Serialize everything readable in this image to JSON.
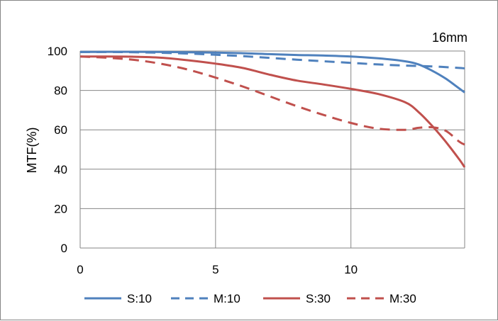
{
  "chart_data": {
    "type": "line",
    "title": "16mm",
    "xlabel": "",
    "ylabel": "MTF(%)",
    "xlim": [
      0,
      14.2
    ],
    "ylim": [
      0,
      100
    ],
    "x_ticks": [
      0,
      5,
      10
    ],
    "y_ticks": [
      0,
      20,
      40,
      60,
      80,
      100
    ],
    "grid": true,
    "legend_position": "bottom",
    "series": [
      {
        "name": "S:10",
        "color": "#4F81BD",
        "dash": "solid",
        "points": [
          [
            0,
            99.5
          ],
          [
            1,
            99.6
          ],
          [
            2,
            99.6
          ],
          [
            3,
            99.5
          ],
          [
            4,
            99.4
          ],
          [
            5,
            99.2
          ],
          [
            6,
            98.9
          ],
          [
            7,
            98.4
          ],
          [
            8,
            98.0
          ],
          [
            9,
            97.7
          ],
          [
            10,
            97.2
          ],
          [
            11,
            96.3
          ],
          [
            12,
            94.8
          ],
          [
            12.5,
            93.2
          ],
          [
            13,
            90.0
          ],
          [
            13.5,
            86.0
          ],
          [
            14,
            81.0
          ],
          [
            14.2,
            79.0
          ]
        ]
      },
      {
        "name": "M:10",
        "color": "#4F81BD",
        "dash": "dashed",
        "points": [
          [
            0,
            99.5
          ],
          [
            1,
            99.5
          ],
          [
            2,
            99.4
          ],
          [
            3,
            99.1
          ],
          [
            4,
            98.7
          ],
          [
            5,
            98.1
          ],
          [
            6,
            97.4
          ],
          [
            7,
            96.5
          ],
          [
            8,
            95.6
          ],
          [
            9,
            94.8
          ],
          [
            10,
            94.0
          ],
          [
            11,
            93.2
          ],
          [
            12,
            92.6
          ],
          [
            13,
            92.2
          ],
          [
            14,
            91.4
          ],
          [
            14.2,
            91.2
          ]
        ]
      },
      {
        "name": "S:30",
        "color": "#C0504D",
        "dash": "solid",
        "points": [
          [
            0,
            97.2
          ],
          [
            1,
            97.2
          ],
          [
            2,
            97.1
          ],
          [
            3,
            96.6
          ],
          [
            4,
            95.3
          ],
          [
            5,
            93.6
          ],
          [
            6,
            91.4
          ],
          [
            7,
            88.0
          ],
          [
            8,
            85.0
          ],
          [
            9,
            83.0
          ],
          [
            10,
            80.8
          ],
          [
            11,
            78.2
          ],
          [
            12,
            74.0
          ],
          [
            12.5,
            69.0
          ],
          [
            13,
            62.0
          ],
          [
            13.5,
            54.0
          ],
          [
            14,
            45.0
          ],
          [
            14.2,
            41.0
          ]
        ]
      },
      {
        "name": "M:30",
        "color": "#C0504D",
        "dash": "dashed",
        "points": [
          [
            0,
            97.2
          ],
          [
            1,
            96.6
          ],
          [
            2,
            95.5
          ],
          [
            3,
            93.5
          ],
          [
            4,
            90.5
          ],
          [
            5,
            86.5
          ],
          [
            6,
            82.0
          ],
          [
            7,
            77.0
          ],
          [
            8,
            72.0
          ],
          [
            9,
            67.5
          ],
          [
            10,
            63.5
          ],
          [
            11,
            60.6
          ],
          [
            12,
            60.0
          ],
          [
            12.5,
            61.0
          ],
          [
            13,
            61.3
          ],
          [
            13.5,
            59.5
          ],
          [
            14,
            54.0
          ],
          [
            14.2,
            52.5
          ]
        ]
      }
    ]
  }
}
